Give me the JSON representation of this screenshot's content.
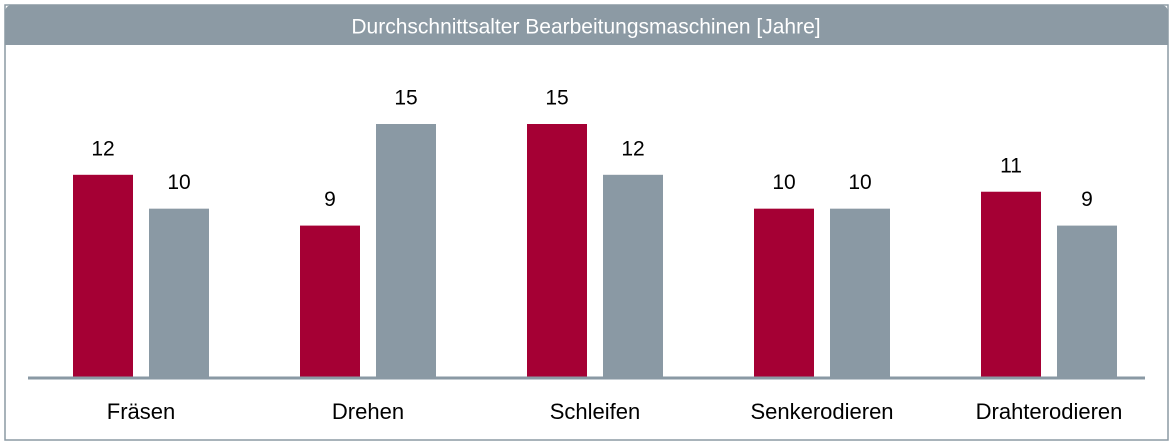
{
  "chart_data": {
    "type": "bar",
    "title": "Durchschnittsalter Bearbeitungsmaschinen [Jahre]",
    "categories": [
      "Fräsen",
      "Drehen",
      "Schleifen",
      "Senkerodieren",
      "Drahterodieren"
    ],
    "series": [
      {
        "color": "#a50034",
        "values": [
          12,
          9,
          15,
          10,
          11
        ]
      },
      {
        "color": "#8a99a4",
        "values": [
          10,
          15,
          12,
          10,
          9
        ]
      }
    ],
    "ylim": [
      0,
      15
    ]
  }
}
